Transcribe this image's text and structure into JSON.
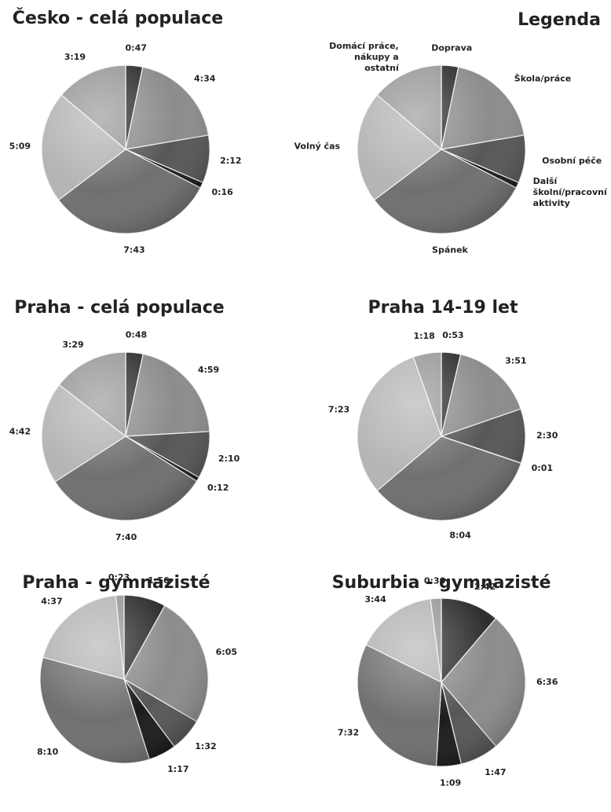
{
  "chart_data": [
    {
      "type": "pie",
      "title": "Česko - celá populace",
      "values": [
        47,
        274,
        132,
        16,
        463,
        309,
        199
      ],
      "value_labels": [
        "0:47",
        "4:34",
        "2:12",
        "0:16",
        "7:43",
        "5:09",
        "3:19"
      ],
      "colors": [
        "#2e2e2e",
        "#8c8c8c",
        "#575757",
        "#1c1c1c",
        "#707070",
        "#b4b4b4",
        "#979797"
      ]
    },
    {
      "type": "pie",
      "title": "Legenda",
      "categories": [
        [
          "Doprava"
        ],
        [
          "Škola/práce"
        ],
        [
          "Osobní péče"
        ],
        [
          "Další",
          "školní/pracovní",
          "aktivity"
        ],
        [
          "Spánek"
        ],
        [
          "Volný čas"
        ],
        [
          "Domácí práce,",
          "nákupy a",
          "ostatní"
        ]
      ],
      "values": [
        47,
        274,
        132,
        16,
        463,
        309,
        199
      ],
      "colors": [
        "#2e2e2e",
        "#8c8c8c",
        "#575757",
        "#1c1c1c",
        "#707070",
        "#b4b4b4",
        "#979797"
      ]
    },
    {
      "type": "pie",
      "title": "Praha - celá populace",
      "values": [
        48,
        299,
        130,
        12,
        460,
        282,
        209
      ],
      "value_labels": [
        "0:48",
        "4:59",
        "2:10",
        "0:12",
        "7:40",
        "4:42",
        "3:29"
      ],
      "colors": [
        "#2e2e2e",
        "#8c8c8c",
        "#575757",
        "#1c1c1c",
        "#707070",
        "#b4b4b4",
        "#979797"
      ]
    },
    {
      "type": "pie",
      "title": "Praha 14-19 let",
      "values": [
        53,
        231,
        150,
        1,
        484,
        443,
        78
      ],
      "value_labels": [
        "0:53",
        "3:51",
        "2:30",
        "0:01",
        "8:04",
        "7:23",
        "1:18"
      ],
      "colors": [
        "#2e2e2e",
        "#8c8c8c",
        "#575757",
        "#1c1c1c",
        "#707070",
        "#b4b4b4",
        "#979797"
      ]
    },
    {
      "type": "pie",
      "title": "Praha - gymnazisté",
      "values": [
        116,
        365,
        92,
        77,
        490,
        277,
        23
      ],
      "value_labels": [
        "1:56",
        "6:05",
        "1:32",
        "1:17",
        "8:10",
        "4:37",
        "0:23"
      ],
      "colors": [
        "#2e2e2e",
        "#8c8c8c",
        "#575757",
        "#1c1c1c",
        "#707070",
        "#b4b4b4",
        "#979797"
      ]
    },
    {
      "type": "pie",
      "title": "Suburbia - gymnazisté",
      "values": [
        162,
        396,
        107,
        69,
        452,
        224,
        30
      ],
      "value_labels": [
        "2:42",
        "6:36",
        "1:47",
        "1:09",
        "7:32",
        "3:44",
        "0:30"
      ],
      "colors": [
        "#2e2e2e",
        "#8c8c8c",
        "#575757",
        "#1c1c1c",
        "#707070",
        "#b4b4b4",
        "#979797"
      ]
    }
  ]
}
